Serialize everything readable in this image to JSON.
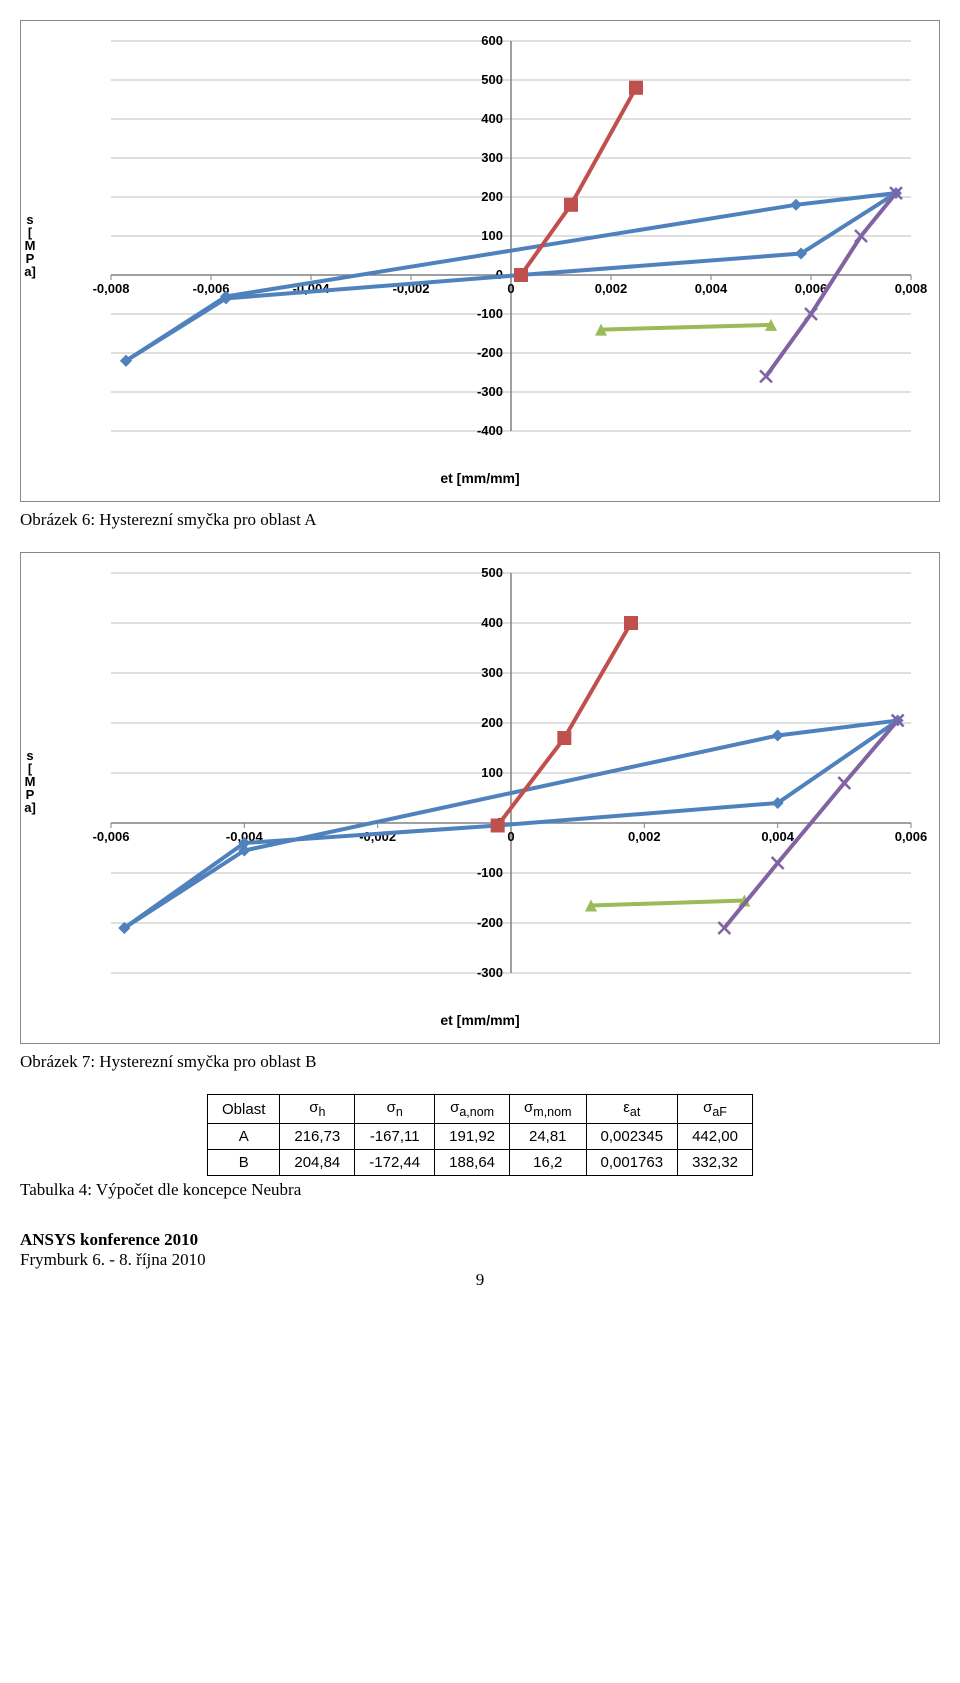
{
  "chart1": {
    "type": "line",
    "ylabel": "s [MPa]",
    "xlabel": "et [mm/mm]",
    "xlim": [
      -0.008,
      0.008
    ],
    "ylim": [
      -400,
      600
    ],
    "xticks": [
      -0.008,
      -0.006,
      -0.004,
      -0.002,
      0,
      0.002,
      0.004,
      0.006,
      0.008
    ],
    "xtick_labels": [
      "-0,008",
      "-0,006",
      "-0,004",
      "-0,002",
      "0",
      "0,002",
      "0,004",
      "0,006",
      "0,008"
    ],
    "yticks": [
      -400,
      -300,
      -200,
      -100,
      0,
      100,
      200,
      300,
      400,
      500,
      600
    ],
    "grid_color": "#bfbfbf",
    "axis_color": "#808080",
    "tick_fontsize": 13,
    "label_fontsize": 14,
    "series": [
      {
        "name": "blue",
        "color": "#4f81bd",
        "width": 4,
        "marker": "diamond",
        "marker_size": 12,
        "points": [
          [
            -0.0077,
            -220
          ],
          [
            -0.0057,
            -60
          ],
          [
            0.0002,
            0
          ],
          [
            0.0058,
            55
          ],
          [
            0.0077,
            210
          ],
          [
            0.0057,
            180
          ],
          [
            -0.0057,
            -55
          ],
          [
            -0.0077,
            -220
          ]
        ]
      },
      {
        "name": "red",
        "color": "#c0504d",
        "width": 4,
        "marker": "square",
        "marker_size": 14,
        "points": [
          [
            0.0002,
            0
          ],
          [
            0.0012,
            180
          ],
          [
            0.0025,
            480
          ]
        ]
      },
      {
        "name": "green",
        "color": "#9bbb59",
        "width": 4,
        "marker": "triangle",
        "marker_size": 12,
        "points": [
          [
            0.0018,
            -140
          ],
          [
            0.0052,
            -128
          ]
        ]
      },
      {
        "name": "purple",
        "color": "#8064a2",
        "width": 4,
        "marker": "x",
        "marker_size": 12,
        "points": [
          [
            0.0051,
            -260
          ],
          [
            0.006,
            -100
          ],
          [
            0.007,
            100
          ],
          [
            0.0077,
            210
          ]
        ]
      }
    ]
  },
  "caption1": "Obrázek 6: Hysterezní smyčka pro oblast A",
  "chart2": {
    "type": "line",
    "ylabel": "s [MPa]",
    "xlabel": "et [mm/mm]",
    "xlim": [
      -0.006,
      0.006
    ],
    "ylim": [
      -300,
      500
    ],
    "xticks": [
      -0.006,
      -0.004,
      -0.002,
      0,
      0.002,
      0.004,
      0.006
    ],
    "xtick_labels": [
      "-0,006",
      "-0,004",
      "-0,002",
      "0",
      "0,002",
      "0,004",
      "0,006"
    ],
    "yticks": [
      -300,
      -200,
      -100,
      0,
      100,
      200,
      300,
      400,
      500
    ],
    "grid_color": "#bfbfbf",
    "axis_color": "#808080",
    "tick_fontsize": 13,
    "label_fontsize": 14,
    "series": [
      {
        "name": "blue",
        "color": "#4f81bd",
        "width": 4,
        "marker": "diamond",
        "marker_size": 12,
        "points": [
          [
            -0.0058,
            -210
          ],
          [
            -0.004,
            -40
          ],
          [
            -0.0002,
            -5
          ],
          [
            0.004,
            40
          ],
          [
            0.0058,
            205
          ],
          [
            0.004,
            175
          ],
          [
            -0.004,
            -55
          ],
          [
            -0.0058,
            -210
          ]
        ]
      },
      {
        "name": "red",
        "color": "#c0504d",
        "width": 4,
        "marker": "square",
        "marker_size": 14,
        "points": [
          [
            -0.0002,
            -5
          ],
          [
            0.0008,
            170
          ],
          [
            0.0018,
            400
          ]
        ]
      },
      {
        "name": "green",
        "color": "#9bbb59",
        "width": 4,
        "marker": "triangle",
        "marker_size": 12,
        "points": [
          [
            0.0012,
            -165
          ],
          [
            0.0035,
            -155
          ]
        ]
      },
      {
        "name": "purple",
        "color": "#8064a2",
        "width": 4,
        "marker": "x",
        "marker_size": 12,
        "points": [
          [
            0.0032,
            -210
          ],
          [
            0.004,
            -80
          ],
          [
            0.005,
            80
          ],
          [
            0.0058,
            205
          ]
        ]
      }
    ]
  },
  "caption2": "Obrázek 7: Hysterezní smyčka pro oblast B",
  "table": {
    "columns": [
      "Oblast",
      "σₕ",
      "σₙ",
      "σₐ,ₙₒₘ",
      "σₘ,ₙₒₘ",
      "εₐₜ",
      "σₐF"
    ],
    "column_html": [
      "Oblast",
      "&sigma;<sub>h</sub>",
      "&sigma;<sub>n</sub>",
      "&sigma;<sub>a,nom</sub>",
      "&sigma;<sub>m,nom</sub>",
      "&epsilon;<sub>at</sub>",
      "&sigma;<sub>aF</sub>"
    ],
    "rows": [
      [
        "A",
        "216,73",
        "-167,11",
        "191,92",
        "24,81",
        "0,002345",
        "442,00"
      ],
      [
        "B",
        "204,84",
        "-172,44",
        "188,64",
        "16,2",
        "0,001763",
        "332,32"
      ]
    ]
  },
  "table_caption": "Tabulka 4: Výpočet dle koncepce Neubra",
  "footer1": "ANSYS konference 2010",
  "footer2": "Frymburk 6. - 8. října 2010",
  "page_number": "9"
}
